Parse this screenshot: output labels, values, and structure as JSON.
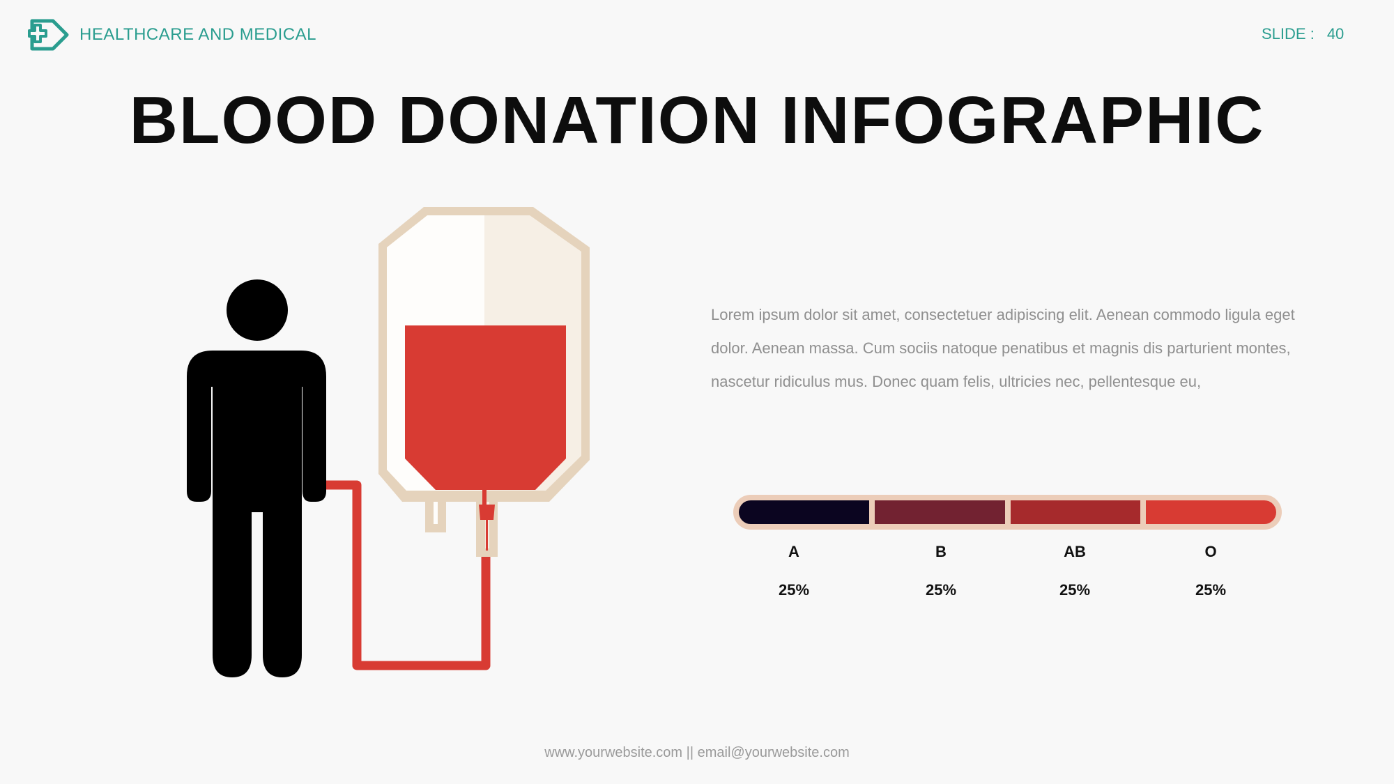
{
  "header": {
    "brand_name": "HEALTHCARE AND MEDICAL",
    "slide_label": "SLIDE :",
    "slide_number": "40"
  },
  "title": "BLOOD DONATION INFOGRAPHIC",
  "body_text": "Lorem ipsum dolor sit amet, consectetuer adipiscing elit. Aenean commodo ligula eget dolor. Aenean massa. Cum sociis natoque penatibus et magnis dis parturient montes, nascetur ridiculus mus. Donec quam felis, ultricies nec, pellentesque eu,",
  "blood_types": [
    {
      "label": "A",
      "value": "25%",
      "share": 0.25,
      "color": "#0b0520"
    },
    {
      "label": "B",
      "value": "25%",
      "share": 0.25,
      "color": "#722231"
    },
    {
      "label": "AB",
      "value": "25%",
      "share": 0.25,
      "color": "#a62a2c"
    },
    {
      "label": "O",
      "value": "25%",
      "share": 0.25,
      "color": "#d83b33"
    }
  ],
  "footer": "www.yourwebsite.com || email@yourwebsite.com",
  "colors": {
    "accent": "#2a9d8f",
    "blood": "#d83b33",
    "bag_outline": "#e5d3bc",
    "bag_fill_left": "#fefdfb",
    "bag_fill_right": "#f6efe5",
    "bar_frame": "#eccdb9",
    "figure": "#000000"
  },
  "icons": {
    "brand": "medical-cross-shield-icon"
  }
}
